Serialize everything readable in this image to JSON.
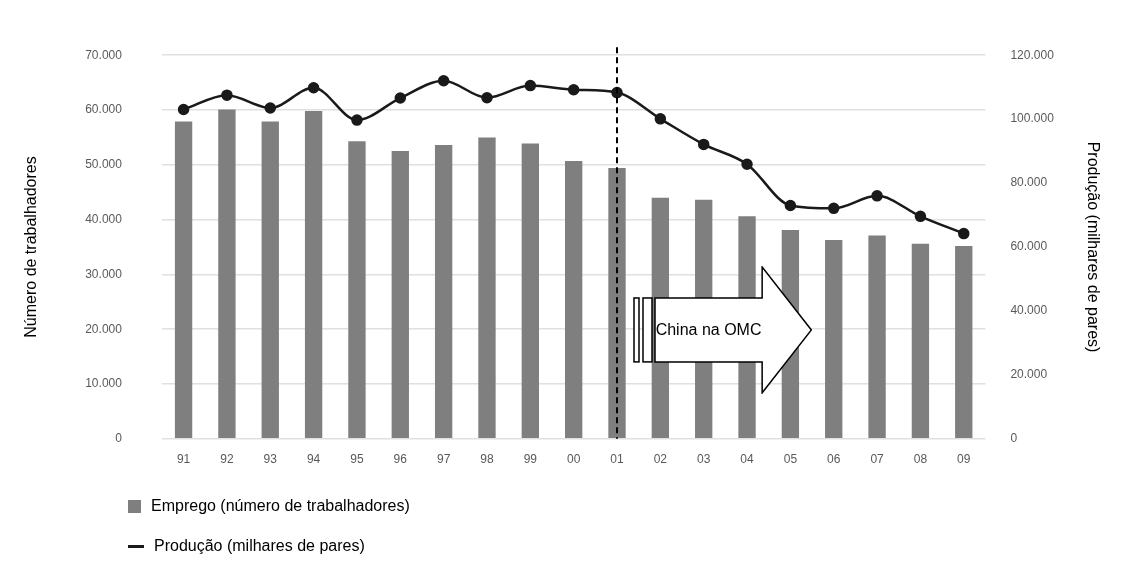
{
  "chart_data": {
    "type": "bar",
    "ylabel": "Número de trabalhadores",
    "y2label": "Produção (milhares de pares)",
    "categories": [
      "91",
      "92",
      "93",
      "94",
      "95",
      "96",
      "97",
      "98",
      "99",
      "00",
      "01",
      "02",
      "03",
      "04",
      "05",
      "06",
      "07",
      "08",
      "09"
    ],
    "series": [
      {
        "name": "Emprego (número de trabalhadores)",
        "color": "#7f7f7f",
        "values": [
          57900,
          60100,
          57900,
          59800,
          54300,
          52500,
          53600,
          55000,
          53900,
          50700,
          49400,
          44000,
          43600,
          40600,
          38100,
          36300,
          37100,
          35600,
          35200
        ]
      },
      {
        "name": "Produção (milhares de pares)",
        "type": "line",
        "axis": "y2",
        "color": "#1a1a1a",
        "marker": "circle",
        "values": [
          103000,
          107500,
          103500,
          109800,
          99700,
          106600,
          112000,
          106700,
          110500,
          109200,
          108300,
          100100,
          92100,
          85900,
          73000,
          72100,
          76000,
          69600,
          64200
        ]
      }
    ],
    "ylim": [
      0,
      70000
    ],
    "yticks": [
      {
        "value": 0,
        "label": "0"
      },
      {
        "value": 10000,
        "label": "10.000"
      },
      {
        "value": 20000,
        "label": "20.000"
      },
      {
        "value": 30000,
        "label": "30.000"
      },
      {
        "value": 40000,
        "label": "40.000"
      },
      {
        "value": 50000,
        "label": "50.000"
      },
      {
        "value": 60000,
        "label": "60.000"
      },
      {
        "value": 70000,
        "label": "70.000"
      }
    ],
    "y2lim": [
      0,
      120000
    ],
    "y2ticks": [
      {
        "value": 0,
        "label": "0"
      },
      {
        "value": 20000,
        "label": "20.000"
      },
      {
        "value": 40000,
        "label": "40.000"
      },
      {
        "value": 60000,
        "label": "60.000"
      },
      {
        "value": 80000,
        "label": "80.000"
      },
      {
        "value": 100000,
        "label": "100.000"
      },
      {
        "value": 120000,
        "label": "120.000"
      }
    ],
    "ref_lines": [
      {
        "axis": "x",
        "value": "01",
        "color": "#000000",
        "line_style": "dashed"
      }
    ],
    "annotations": [
      "China na OMC"
    ],
    "grid": "y",
    "legend": "bottom left"
  }
}
